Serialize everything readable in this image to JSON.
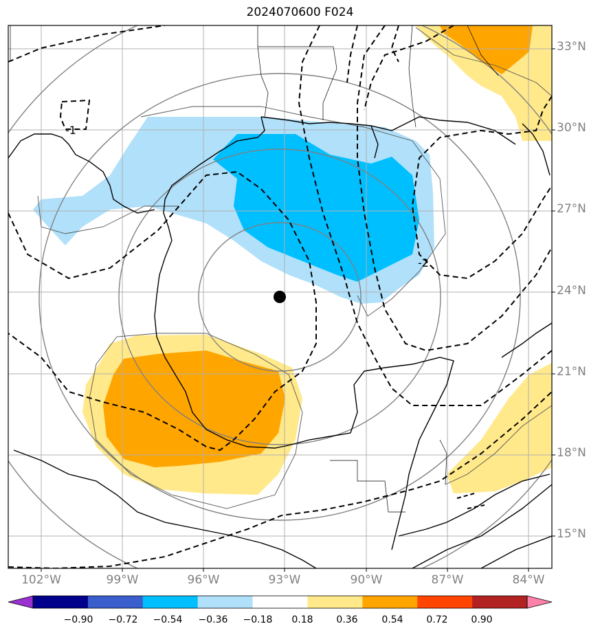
{
  "title": "2024070600 F024",
  "map": {
    "lat_labels": [
      "33°N",
      "30°N",
      "27°N",
      "24°N",
      "21°N",
      "18°N",
      "15°N"
    ],
    "lon_labels": [
      "102°W",
      "99°W",
      "96°W",
      "93°W",
      "90°W",
      "87°W",
      "84°W"
    ],
    "contour_label": "-1",
    "contour_label_2": "-2",
    "storm_center": {
      "lat": 23.8,
      "lon": -93.3
    }
  },
  "colorbar": {
    "ticks": [
      "−0.90",
      "−0.72",
      "−0.54",
      "−0.36",
      "−0.18",
      "0.18",
      "0.36",
      "0.54",
      "0.72",
      "0.90"
    ],
    "colors": [
      "#9b30d0",
      "#00008b",
      "#3a5fcd",
      "#00bfff",
      "#b0e0fa",
      "#ffffff",
      "#ffe98a",
      "#ffa500",
      "#ff4500",
      "#b22222",
      "#ff82ab"
    ]
  }
}
